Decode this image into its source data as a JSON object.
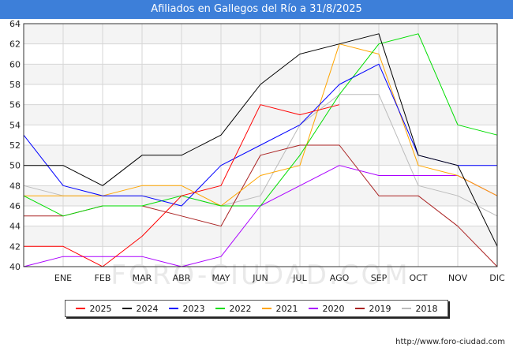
{
  "header": {
    "title": "Afiliados en Gallegos del Río a 31/8/2025"
  },
  "footer": {
    "url": "http://www.foro-ciudad.com"
  },
  "watermark": {
    "text": "FORO-CIUDAD.COM"
  },
  "chart_data": {
    "type": "line",
    "title": "Afiliados en Gallegos del Río a 31/8/2025",
    "xlabel": "",
    "ylabel": "",
    "categories": [
      "",
      "ENE",
      "FEB",
      "MAR",
      "ABR",
      "MAY",
      "JUN",
      "JUL",
      "AGO",
      "SEP",
      "OCT",
      "NOV",
      "DIC"
    ],
    "ylim": [
      40,
      64
    ],
    "yticks": [
      40,
      42,
      44,
      46,
      48,
      50,
      52,
      54,
      56,
      58,
      60,
      62,
      64
    ],
    "grid": true,
    "legend_position": "bottom",
    "series": [
      {
        "name": "2025",
        "color": "#ff0000",
        "values": [
          42,
          42,
          40,
          43,
          47,
          48,
          56,
          55,
          56,
          null,
          null,
          null,
          null
        ]
      },
      {
        "name": "2024",
        "color": "#000000",
        "values": [
          50,
          50,
          48,
          51,
          51,
          53,
          58,
          61,
          62,
          63,
          51,
          50,
          42
        ]
      },
      {
        "name": "2023",
        "color": "#0000ff",
        "values": [
          53,
          48,
          47,
          47,
          46,
          50,
          52,
          54,
          58,
          60,
          51,
          50,
          50
        ]
      },
      {
        "name": "2022",
        "color": "#00dd00",
        "values": [
          47,
          45,
          46,
          46,
          47,
          46,
          46,
          51,
          57,
          62,
          63,
          54,
          53
        ]
      },
      {
        "name": "2021",
        "color": "#ffa500",
        "values": [
          47,
          47,
          47,
          48,
          48,
          46,
          49,
          50,
          62,
          61,
          50,
          49,
          47
        ]
      },
      {
        "name": "2020",
        "color": "#aa00ff",
        "values": [
          40,
          41,
          41,
          41,
          40,
          41,
          46,
          48,
          50,
          49,
          49,
          49,
          47
        ]
      },
      {
        "name": "2019",
        "color": "#aa2222",
        "values": [
          45,
          45,
          46,
          46,
          45,
          44,
          51,
          52,
          52,
          47,
          47,
          44,
          40
        ]
      },
      {
        "name": "2018",
        "color": "#bbbbbb",
        "values": [
          48,
          47,
          47,
          47,
          47,
          46,
          47,
          54,
          57,
          57,
          48,
          47,
          45
        ]
      }
    ]
  }
}
